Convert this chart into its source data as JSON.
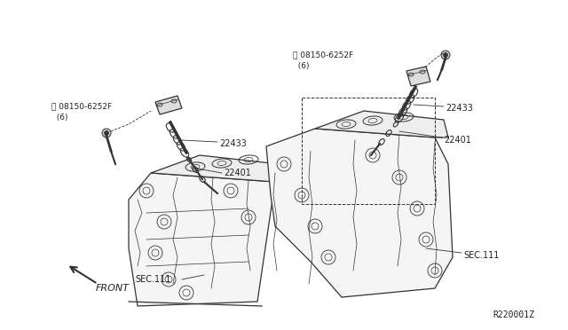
{
  "bg_color": "#ffffff",
  "line_color": "#333333",
  "label_color": "#222222",
  "fig_width": 6.4,
  "fig_height": 3.72,
  "dpi": 100,
  "diagram_ref": "R220001Z",
  "left_bolt_label": "B08150-6252F\n  (6)",
  "right_bolt_label": "B08150-6252F\n  (6)",
  "left_coil_label": "22433",
  "left_plug_label": "22401",
  "left_sec_label": "SEC.111",
  "right_coil_label": "22433",
  "right_plug_label": "22401",
  "right_sec_label": "SEC.111",
  "front_label": "FRONT"
}
